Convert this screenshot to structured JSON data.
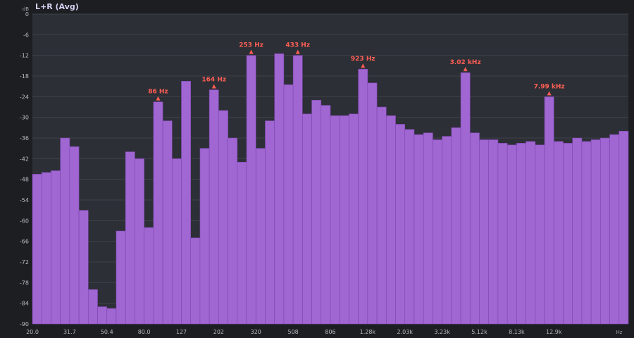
{
  "title": "L+R (Avg)",
  "colors": {
    "bar": "#a066d2",
    "bar_edge": "#7d46b0",
    "plot_bg": "#2c2f35",
    "grid": "#3e424a",
    "peak": "#ff5e55"
  },
  "chart_data": {
    "type": "bar",
    "title": "L+R (Avg)",
    "y_unit": "dB",
    "x_unit": "Hz",
    "ylim": [
      -90,
      0
    ],
    "y_ticks": [
      0,
      -6,
      -12,
      -18,
      -24,
      -30,
      -36,
      -42,
      -48,
      -54,
      -60,
      -66,
      -72,
      -78,
      -84,
      -90
    ],
    "x_tick_labels": [
      "20.0",
      "31.7",
      "50.4",
      "80.0",
      "127",
      "202",
      "320",
      "508",
      "806",
      "1.28k",
      "2.03k",
      "3.23k",
      "5.12k",
      "8.13k",
      "12.9k"
    ],
    "grid": true,
    "values": [
      -46.5,
      -46,
      -45.5,
      -36,
      -38.5,
      -57,
      -80,
      -85,
      -85.5,
      -63,
      -40,
      -42,
      -62,
      -25.5,
      -31,
      -42,
      -19.5,
      -65,
      -39,
      -22,
      -28,
      -36,
      -43,
      -12,
      -39,
      -31,
      -11.5,
      -20.5,
      -12,
      -29,
      -25,
      -26.5,
      -29.5,
      -29.5,
      -29,
      -16,
      -20,
      -27,
      -29.5,
      -32,
      -33.5,
      -35,
      -34.5,
      -36.5,
      -35.5,
      -33,
      -17,
      -34.5,
      -36.5,
      -36.5,
      -37.5,
      -38,
      -37.5,
      -37,
      -38,
      -24,
      -37,
      -37.5,
      -36,
      -37,
      -36.5,
      -36,
      -35,
      -34
    ],
    "peaks": [
      {
        "label": "86 Hz",
        "bar": 13
      },
      {
        "label": "164 Hz",
        "bar": 19
      },
      {
        "label": "253 Hz",
        "bar": 23
      },
      {
        "label": "433 Hz",
        "bar": 28
      },
      {
        "label": "923 Hz",
        "bar": 35
      },
      {
        "label": "3.02 kHz",
        "bar": 46
      },
      {
        "label": "7.99 kHz",
        "bar": 55
      }
    ]
  }
}
